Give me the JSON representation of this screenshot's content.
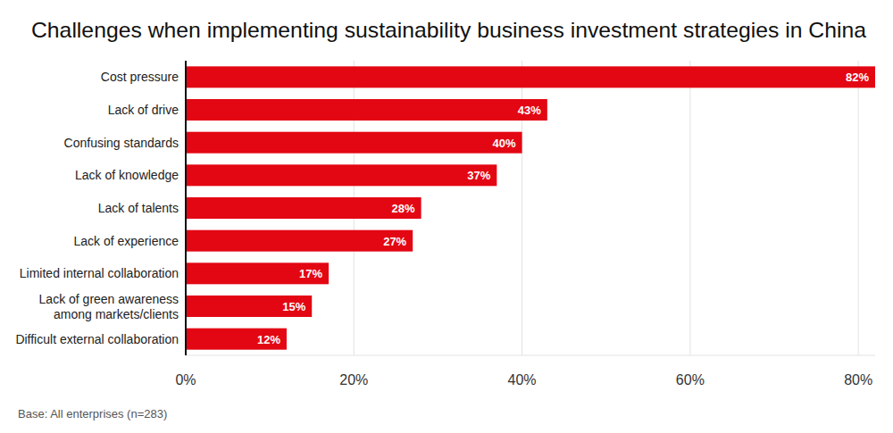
{
  "chart_data": {
    "type": "bar",
    "orientation": "horizontal",
    "title": "Challenges when implementing sustainability business investment strategies in China",
    "categories": [
      "Cost pressure",
      "Lack of drive",
      "Confusing standards",
      "Lack of knowledge",
      "Lack of talents",
      "Lack of experience",
      "Limited internal collaboration",
      "Lack of green awareness among markets/clients",
      "Difficult external collaboration"
    ],
    "values": [
      82,
      43,
      40,
      37,
      28,
      27,
      17,
      15,
      12
    ],
    "value_labels": [
      "82%",
      "43%",
      "40%",
      "37%",
      "28%",
      "27%",
      "17%",
      "15%",
      "12%"
    ],
    "color": "#e30613",
    "xlim": [
      0,
      82
    ],
    "xticks": [
      {
        "value": 0,
        "label": "0%"
      },
      {
        "value": 20,
        "label": "20%"
      },
      {
        "value": 40,
        "label": "40%"
      },
      {
        "value": 60,
        "label": "60%"
      },
      {
        "value": 80,
        "label": "80%"
      }
    ],
    "grid": true,
    "data_labels": true,
    "annotations": [
      "Base: All enterprises (n=283)"
    ]
  }
}
